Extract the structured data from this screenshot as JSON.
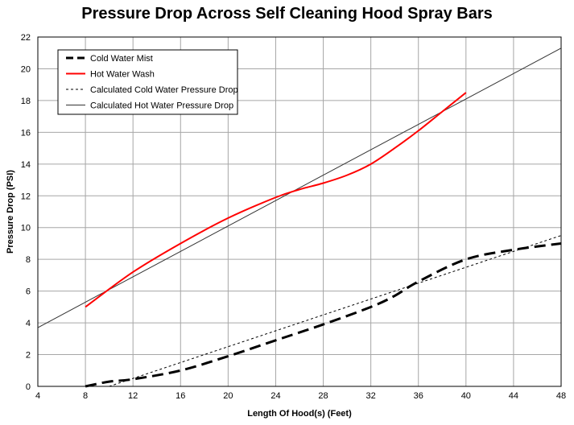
{
  "chart_data": {
    "type": "line",
    "title": "Pressure Drop Across Self Cleaning Hood Spray Bars",
    "xlabel": "Length Of Hood(s) (Feet)",
    "ylabel": "Pressure Drop (PSI)",
    "xlim": [
      4,
      48
    ],
    "ylim": [
      0,
      22
    ],
    "xticks": [
      4,
      8,
      12,
      16,
      20,
      24,
      28,
      32,
      36,
      40,
      44,
      48
    ],
    "yticks": [
      0,
      2,
      4,
      6,
      8,
      10,
      12,
      14,
      16,
      18,
      20,
      22
    ],
    "grid": true,
    "legend_position": "top-left",
    "series": [
      {
        "name": "Cold Water Mist",
        "color": "#000000",
        "style": "dashed-thick",
        "x": [
          8,
          10,
          12,
          16,
          20,
          24,
          28,
          32,
          34,
          36,
          40,
          44,
          48
        ],
        "y": [
          0,
          0.3,
          0.45,
          1.0,
          1.9,
          2.9,
          3.9,
          5.0,
          5.7,
          6.6,
          8.0,
          8.6,
          9.0
        ]
      },
      {
        "name": "Hot Water Wash",
        "color": "#ff0000",
        "style": "solid",
        "x": [
          8,
          12,
          16,
          20,
          24,
          26,
          28,
          30,
          32,
          34,
          36,
          38,
          40
        ],
        "y": [
          5.0,
          7.2,
          9.0,
          10.6,
          11.9,
          12.4,
          12.8,
          13.3,
          14.0,
          15.0,
          16.1,
          17.3,
          18.5
        ]
      },
      {
        "name": "Calculated Cold Water Pressure Drop",
        "color": "#000000",
        "style": "dotted-thin",
        "x": [
          10,
          48
        ],
        "y": [
          0,
          9.5
        ]
      },
      {
        "name": "Calculated Hot Water Pressure Drop",
        "color": "#333333",
        "style": "solid-thin",
        "x": [
          4,
          48
        ],
        "y": [
          3.7,
          21.3
        ]
      }
    ]
  }
}
